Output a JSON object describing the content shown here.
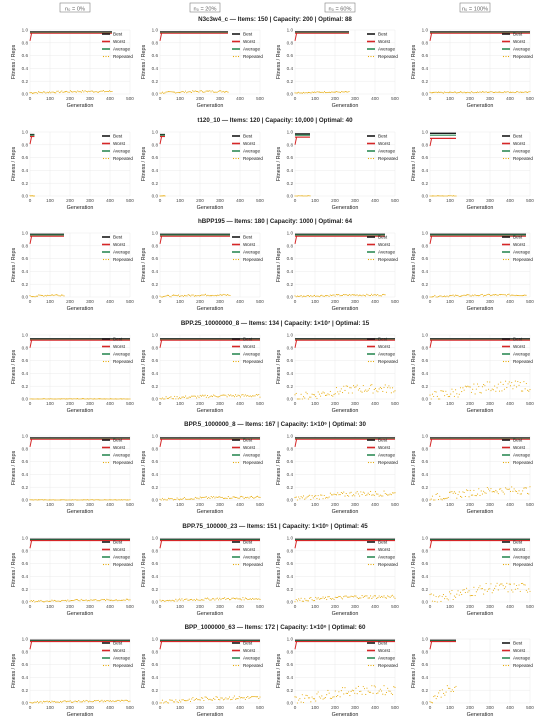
{
  "figure": {
    "facet_label_template": "n_0 = {p}",
    "facet_headers": [
      "n₀ = 0%",
      "n₀ = 20%",
      "n₀ = 60%",
      "n₀ = 100%"
    ],
    "y_axis_label": "Fitness / Reps",
    "x_axis_label": "Generation",
    "legend": [
      "Best",
      "Worst",
      "Average",
      "Repeated"
    ],
    "colors": {
      "Best": "#1a1a1a",
      "Worst": "#d62728",
      "Average": "#2e8b57",
      "Repeated": "#e6a800",
      "grid": "#ebebeb",
      "header_box": "#808080"
    },
    "x_ticks": [
      0,
      100,
      200,
      300,
      400,
      500
    ],
    "y_ticks": [
      "0.0",
      "0.2",
      "0.4",
      "0.6",
      "0.8",
      "1.0"
    ]
  },
  "chart_data": [
    {
      "type": "line",
      "title": "N3c3w4_c — Items: 150 | Capacity: 200 | Optimal: 88",
      "xlabel": "Generation",
      "ylabel": "Fitness / Reps",
      "xlim": [
        0,
        500
      ],
      "ylim": [
        0,
        1.0
      ],
      "grid": true,
      "legend_position": "top-right",
      "panels": [
        {
          "n0": "0%",
          "gen_max": 410,
          "best": 0.97,
          "worst": 0.95,
          "average": 0.96,
          "repeated": [
            0.02,
            0.04
          ]
        },
        {
          "n0": "20%",
          "gen_max": 340,
          "best": 0.97,
          "worst": 0.95,
          "average": 0.96,
          "repeated": [
            0.02,
            0.04
          ]
        },
        {
          "n0": "60%",
          "gen_max": 270,
          "best": 0.97,
          "worst": 0.95,
          "average": 0.96,
          "repeated": [
            0.02,
            0.03
          ]
        },
        {
          "n0": "100%",
          "gen_max": 500,
          "best": 0.97,
          "worst": 0.95,
          "average": 0.96,
          "repeated": [
            0.02,
            0.03
          ]
        }
      ]
    },
    {
      "type": "line",
      "title": "t120_10 — Items: 120 | Capacity: 10,000 | Optimal: 40",
      "xlabel": "Generation",
      "ylabel": "Fitness / Reps",
      "xlim": [
        0,
        500
      ],
      "ylim": [
        0,
        1.0
      ],
      "grid": true,
      "legend_position": "top-right",
      "panels": [
        {
          "n0": "0%",
          "gen_max": 22,
          "best": 0.96,
          "worst": 0.93,
          "average": 0.95,
          "repeated": [
            0.0,
            0.0
          ]
        },
        {
          "n0": "20%",
          "gen_max": 25,
          "best": 0.96,
          "worst": 0.93,
          "average": 0.95,
          "repeated": [
            0.0,
            0.0
          ]
        },
        {
          "n0": "60%",
          "gen_max": 75,
          "best": 0.97,
          "worst": 0.92,
          "average": 0.95,
          "repeated": [
            0.0,
            0.0
          ]
        },
        {
          "n0": "100%",
          "gen_max": 130,
          "best": 0.98,
          "worst": 0.9,
          "average": 0.95,
          "repeated": [
            0.0,
            0.0
          ]
        }
      ]
    },
    {
      "type": "line",
      "title": "hBPP195 — Items: 180 | Capacity: 1000 | Optimal: 64",
      "xlabel": "Generation",
      "ylabel": "Fitness / Reps",
      "xlim": [
        0,
        500
      ],
      "ylim": [
        0,
        1.0
      ],
      "grid": true,
      "legend_position": "top-right",
      "panels": [
        {
          "n0": "0%",
          "gen_max": 170,
          "best": 0.98,
          "worst": 0.95,
          "average": 0.97,
          "repeated": [
            0.01,
            0.03
          ]
        },
        {
          "n0": "20%",
          "gen_max": 350,
          "best": 0.98,
          "worst": 0.95,
          "average": 0.97,
          "repeated": [
            0.01,
            0.03
          ]
        },
        {
          "n0": "60%",
          "gen_max": 450,
          "best": 0.98,
          "worst": 0.95,
          "average": 0.97,
          "repeated": [
            0.01,
            0.03
          ]
        },
        {
          "n0": "100%",
          "gen_max": 480,
          "best": 0.98,
          "worst": 0.95,
          "average": 0.97,
          "repeated": [
            0.01,
            0.03
          ]
        }
      ]
    },
    {
      "type": "line",
      "title": "BPP.25_10000000_8 — Items: 134 | Capacity: 1×10⁷ | Optimal: 15",
      "xlabel": "Generation",
      "ylabel": "Fitness / Reps",
      "xlim": [
        0,
        500
      ],
      "ylim": [
        0,
        1.0
      ],
      "grid": true,
      "legend_position": "top-right",
      "panels": [
        {
          "n0": "0%",
          "gen_max": 500,
          "best": 0.94,
          "worst": 0.92,
          "average": 0.93,
          "repeated": [
            0.0,
            0.0
          ]
        },
        {
          "n0": "20%",
          "gen_max": 500,
          "best": 0.94,
          "worst": 0.92,
          "average": 0.93,
          "repeated": [
            0.01,
            0.05
          ]
        },
        {
          "n0": "60%",
          "gen_max": 500,
          "best": 0.94,
          "worst": 0.92,
          "average": 0.93,
          "repeated": [
            0.02,
            0.16
          ]
        },
        {
          "n0": "100%",
          "gen_max": 500,
          "best": 0.94,
          "worst": 0.92,
          "average": 0.93,
          "repeated": [
            0.03,
            0.2
          ]
        }
      ]
    },
    {
      "type": "line",
      "title": "BPP.5_1000000_8 — Items: 167 | Capacity: 1×10⁶ | Optimal: 30",
      "xlabel": "Generation",
      "ylabel": "Fitness / Reps",
      "xlim": [
        0,
        500
      ],
      "ylim": [
        0,
        1.0
      ],
      "grid": true,
      "legend_position": "top-right",
      "panels": [
        {
          "n0": "0%",
          "gen_max": 500,
          "best": 0.97,
          "worst": 0.95,
          "average": 0.96,
          "repeated": [
            0.0,
            0.0
          ]
        },
        {
          "n0": "20%",
          "gen_max": 500,
          "best": 0.97,
          "worst": 0.95,
          "average": 0.96,
          "repeated": [
            0.01,
            0.04
          ]
        },
        {
          "n0": "60%",
          "gen_max": 500,
          "best": 0.97,
          "worst": 0.95,
          "average": 0.96,
          "repeated": [
            0.02,
            0.1
          ]
        },
        {
          "n0": "100%",
          "gen_max": 500,
          "best": 0.97,
          "worst": 0.95,
          "average": 0.96,
          "repeated": [
            0.03,
            0.15
          ]
        }
      ]
    },
    {
      "type": "line",
      "title": "BPP.75_100000_23 — Items: 151 | Capacity: 1×10⁵ | Optimal: 45",
      "xlabel": "Generation",
      "ylabel": "Fitness / Reps",
      "xlim": [
        0,
        500
      ],
      "ylim": [
        0,
        1.0
      ],
      "grid": true,
      "legend_position": "top-right",
      "panels": [
        {
          "n0": "0%",
          "gen_max": 500,
          "best": 0.98,
          "worst": 0.96,
          "average": 0.97,
          "repeated": [
            0.01,
            0.03
          ]
        },
        {
          "n0": "20%",
          "gen_max": 500,
          "best": 0.98,
          "worst": 0.96,
          "average": 0.97,
          "repeated": [
            0.02,
            0.05
          ]
        },
        {
          "n0": "60%",
          "gen_max": 500,
          "best": 0.98,
          "worst": 0.96,
          "average": 0.97,
          "repeated": [
            0.03,
            0.08
          ]
        },
        {
          "n0": "100%",
          "gen_max": 500,
          "best": 0.98,
          "worst": 0.96,
          "average": 0.97,
          "repeated": [
            0.05,
            0.22
          ]
        }
      ]
    },
    {
      "type": "line",
      "title": "BPP_1000000_63 — Items: 172 | Capacity: 1×10⁶ | Optimal: 60",
      "xlabel": "Generation",
      "ylabel": "Fitness / Reps",
      "xlim": [
        0,
        500
      ],
      "ylim": [
        0,
        1.0
      ],
      "grid": true,
      "legend_position": "top-right",
      "panels": [
        {
          "n0": "0%",
          "gen_max": 500,
          "best": 0.98,
          "worst": 0.96,
          "average": 0.97,
          "repeated": [
            0.01,
            0.03
          ]
        },
        {
          "n0": "20%",
          "gen_max": 500,
          "best": 0.98,
          "worst": 0.96,
          "average": 0.97,
          "repeated": [
            0.02,
            0.08
          ]
        },
        {
          "n0": "60%",
          "gen_max": 500,
          "best": 0.98,
          "worst": 0.96,
          "average": 0.97,
          "repeated": [
            0.05,
            0.2
          ]
        },
        {
          "n0": "100%",
          "gen_max": 130,
          "best": 0.98,
          "worst": 0.96,
          "average": 0.97,
          "repeated": [
            0.05,
            0.2
          ]
        }
      ]
    }
  ]
}
